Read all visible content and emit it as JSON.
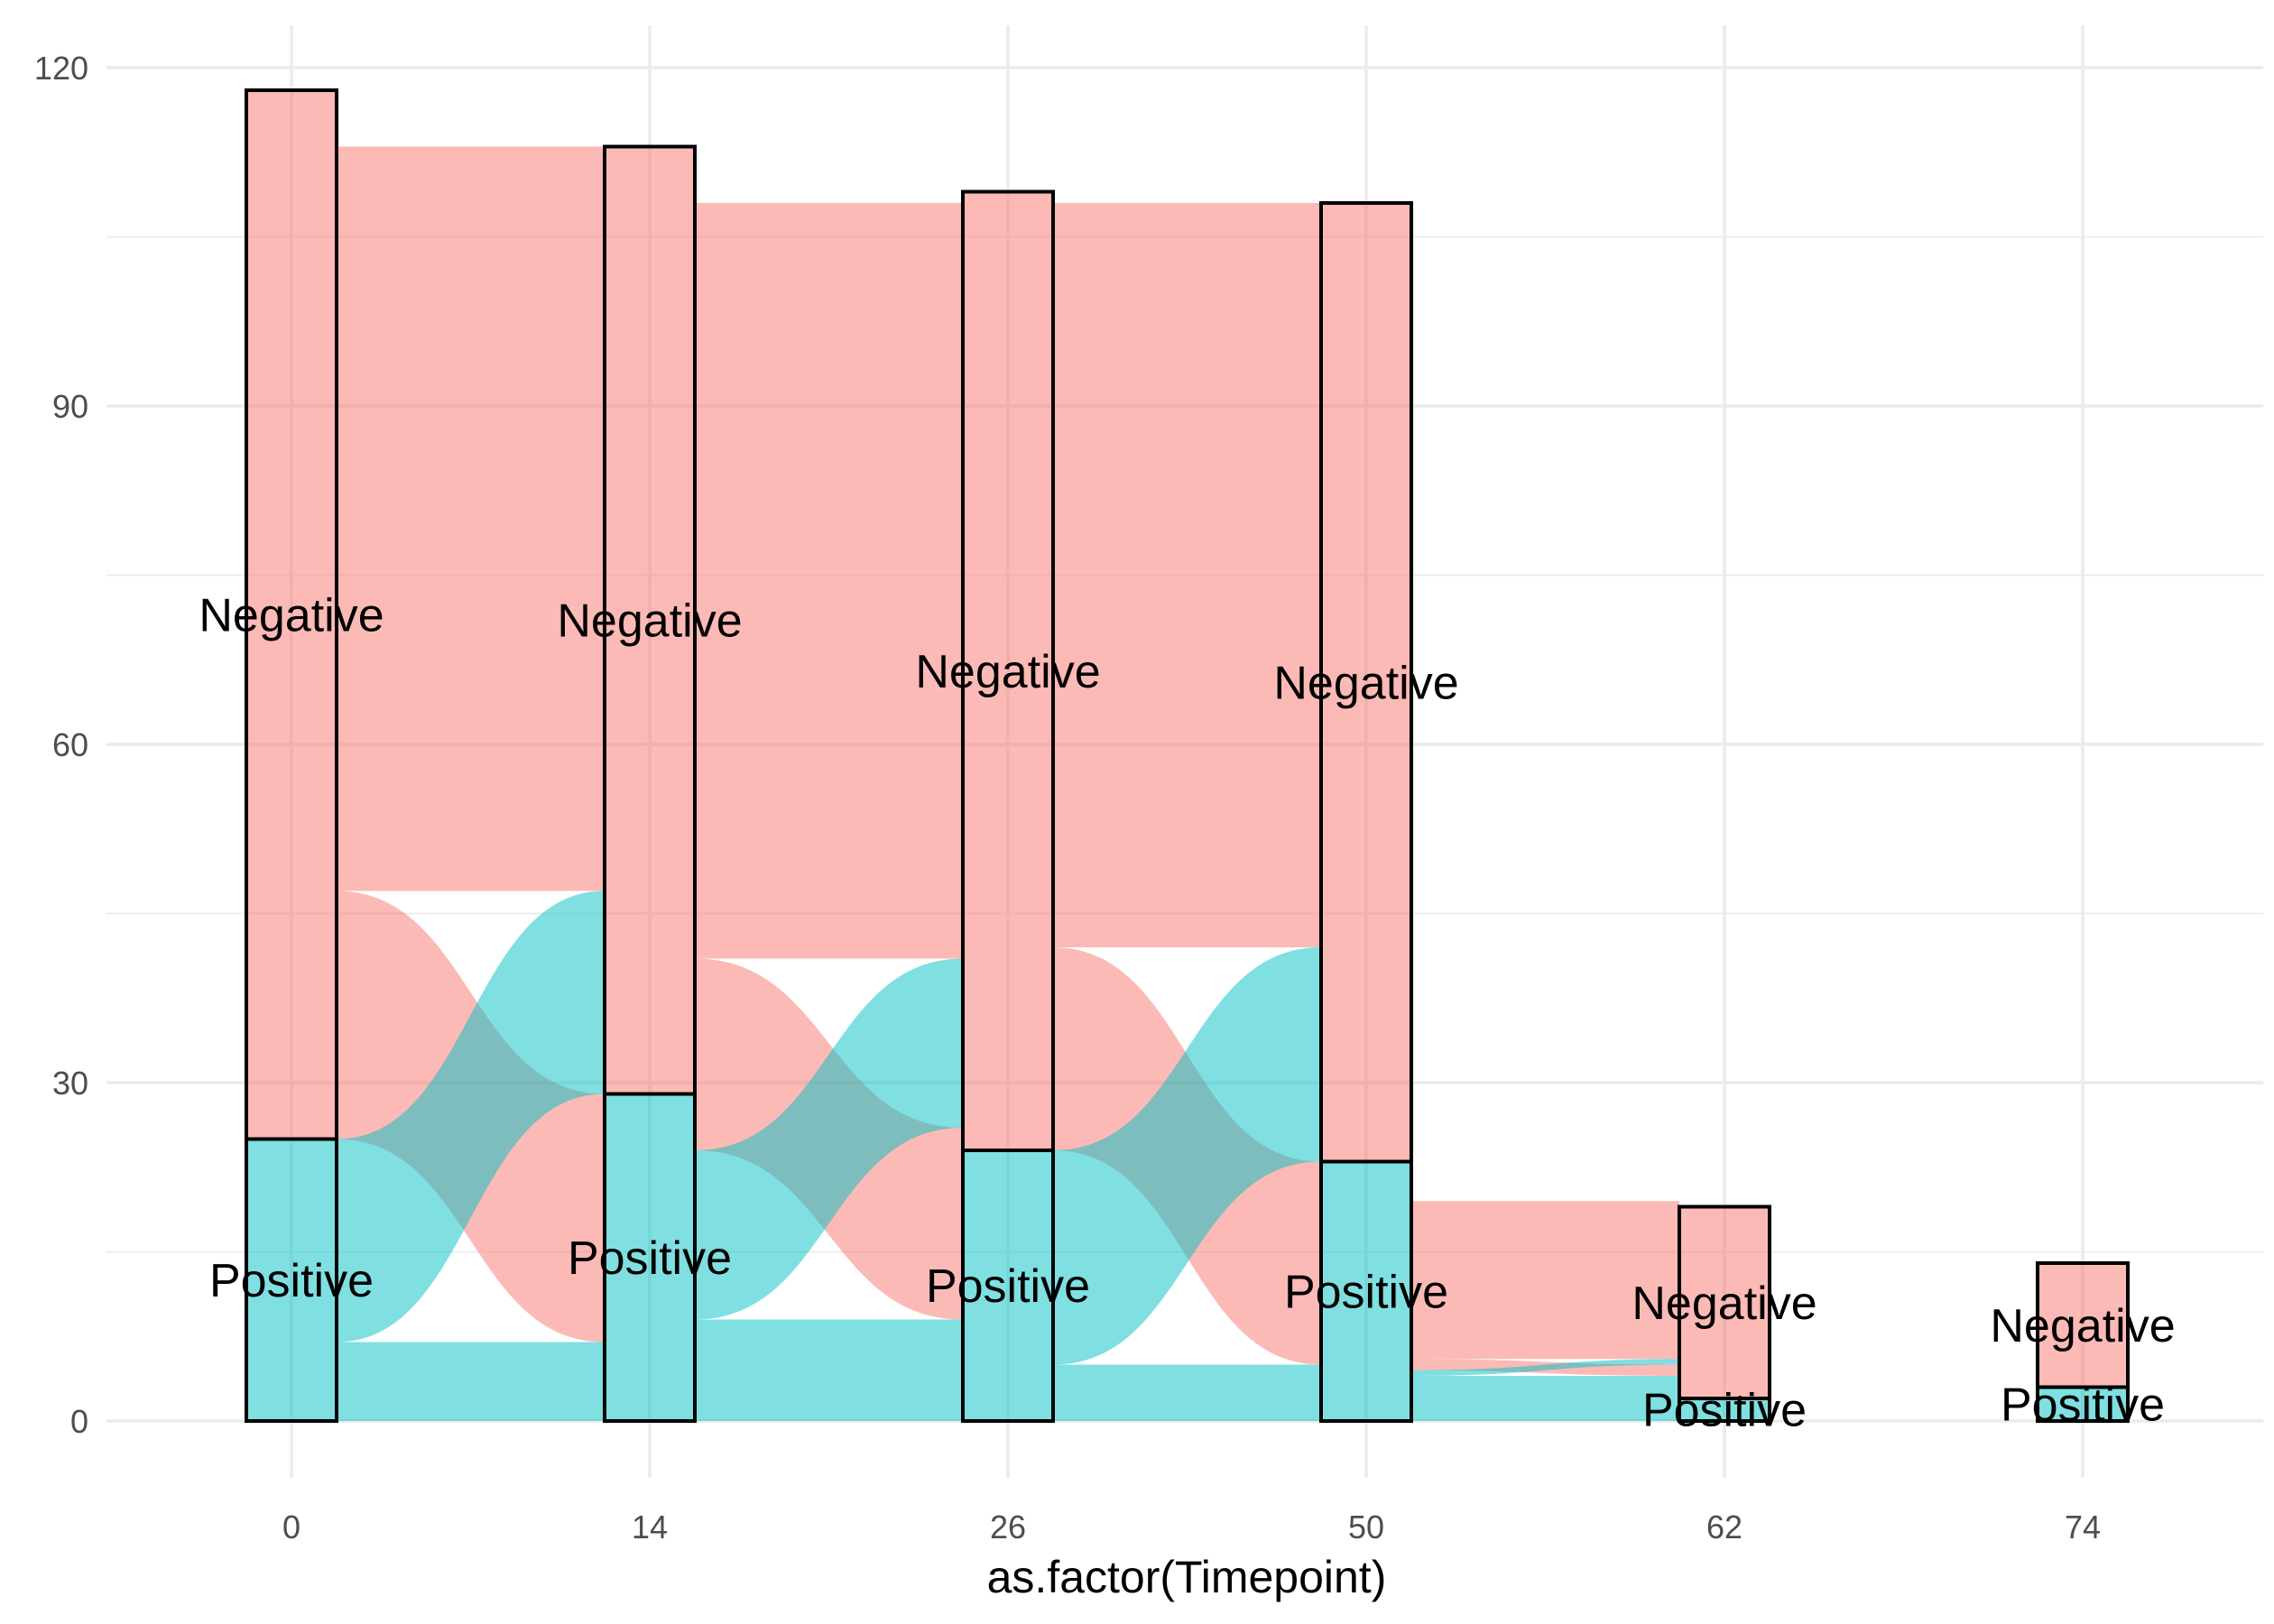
{
  "chart_data": {
    "type": "alluvial",
    "title": "",
    "xlabel": "as.factor(Timepoint)",
    "ylabel": "",
    "ylim": [
      -6,
      124
    ],
    "yticks": [
      "0",
      "30",
      "60",
      "90",
      "120"
    ],
    "grid": true,
    "legend": "none",
    "categories": [
      "0",
      "14",
      "26",
      "50",
      "62",
      "74"
    ],
    "strata_labels": [
      "Negative",
      "Positive"
    ],
    "strata": [
      {
        "x": "0",
        "Positive": 25,
        "Negative": 93
      },
      {
        "x": "14",
        "Positive": 29,
        "Negative": 84
      },
      {
        "x": "26",
        "Positive": 24,
        "Negative": 85
      },
      {
        "x": "50",
        "Positive": 23,
        "Negative": 85
      },
      {
        "x": "62",
        "Positive": 2,
        "Negative": 17
      },
      {
        "x": "74",
        "Positive": 3,
        "Negative": 11
      }
    ],
    "flows": [
      {
        "from": "0",
        "to": "14",
        "Negative->Negative": 66,
        "Negative->Positive": 22,
        "Positive->Negative": 18,
        "Positive->Positive": 7
      },
      {
        "from": "14",
        "to": "26",
        "Negative->Negative": 67,
        "Negative->Positive": 17,
        "Positive->Negative": 15,
        "Positive->Positive": 9
      },
      {
        "from": "26",
        "to": "50",
        "Negative->Negative": 66,
        "Negative->Positive": 18,
        "Positive->Negative": 19,
        "Positive->Positive": 5
      },
      {
        "from": "50",
        "to": "62",
        "Negative->Negative": 14,
        "Negative->Positive": 1,
        "Positive->Negative": 0.5,
        "Positive->Positive": 4
      }
    ],
    "colors": {
      "Negative": "#F8766D",
      "Positive": "#00BFC4",
      "stratum_border": "#000000",
      "grid": "#EBEBEB"
    }
  }
}
